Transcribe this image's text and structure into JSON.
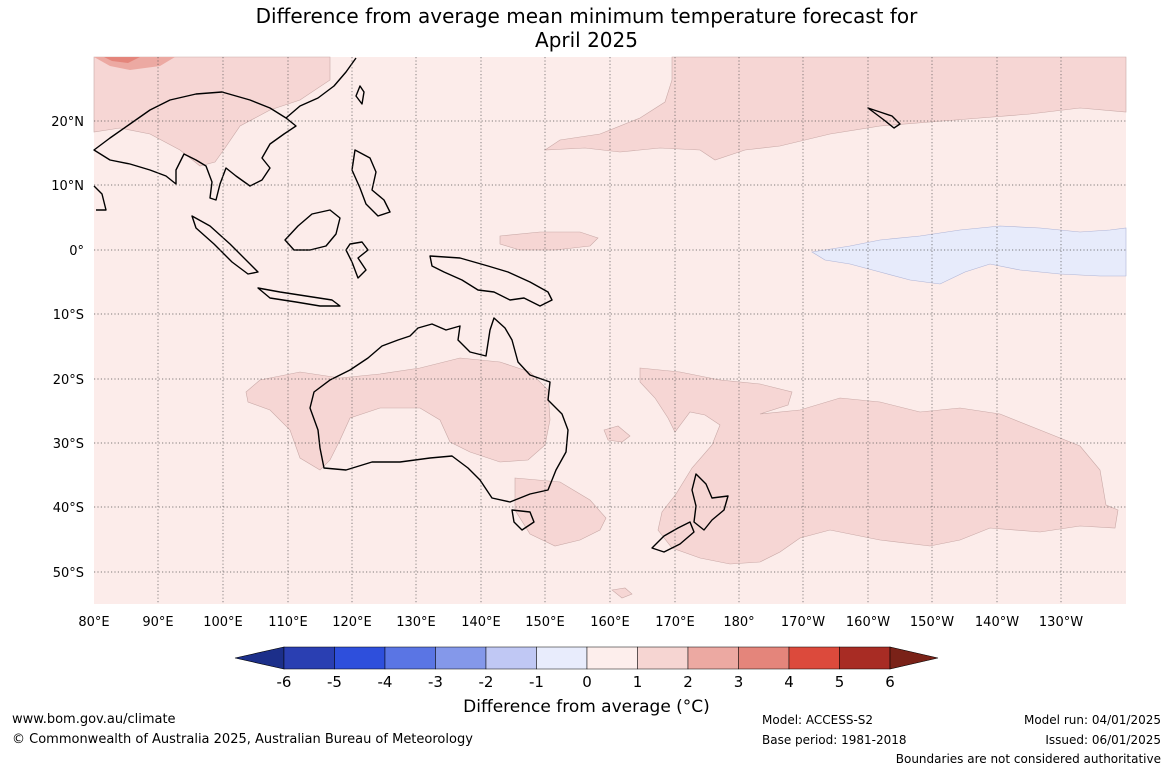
{
  "title_line1": "Difference from average mean minimum temperature forecast for",
  "title_line2": "April 2025",
  "lat_labels": [
    "20°N",
    "10°N",
    "0°",
    "10°S",
    "20°S",
    "30°S",
    "40°S",
    "50°S"
  ],
  "lon_labels": [
    "80°E",
    "90°E",
    "100°E",
    "110°E",
    "120°E",
    "130°E",
    "140°E",
    "150°E",
    "160°E",
    "170°E",
    "180°",
    "170°W",
    "160°W",
    "150°W",
    "140°W",
    "130°W"
  ],
  "colorbar": {
    "ticks": [
      "-6",
      "-5",
      "-4",
      "-3",
      "-2",
      "-1",
      "0",
      "1",
      "2",
      "3",
      "4",
      "5",
      "6"
    ],
    "colors": [
      "#1c2f8a",
      "#2a3fb2",
      "#2e4fdc",
      "#5a75e4",
      "#8498ea",
      "#c0c8f4",
      "#e8ecfc",
      "#fdeeec",
      "#f6d5d2",
      "#eca9a2",
      "#e4857b",
      "#dc4a3c",
      "#a82c24",
      "#7a2218"
    ],
    "title": "Difference from average (°C)"
  },
  "footer": {
    "website": "www.bom.gov.au/climate",
    "copyright": "© Commonwealth of Australia 2025, Australian Bureau of Meteorology",
    "model": "Model: ACCESS-S2",
    "base_period": "Base period: 1981-2018",
    "model_run": "Model run: 04/01/2025",
    "issued": "Issued: 06/01/2025",
    "boundaries": "Boundaries are not considered authoritative"
  }
}
